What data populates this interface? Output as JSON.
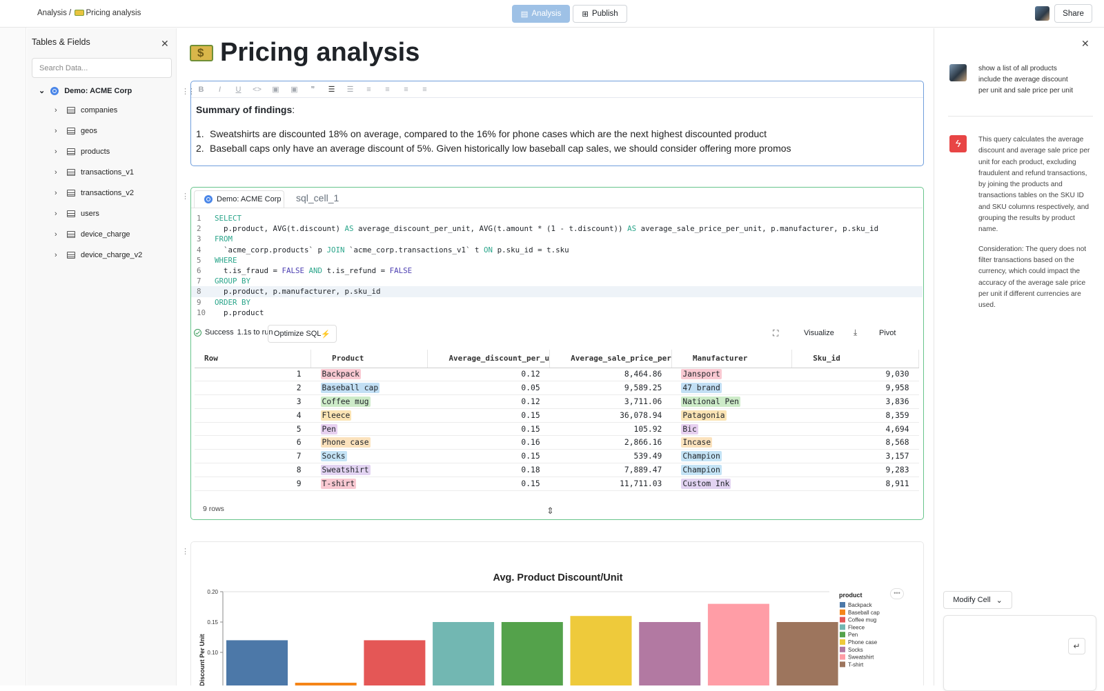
{
  "topbar": {
    "breadcrumb_root": "Analysis",
    "breadcrumb_sep": "/",
    "breadcrumb_page": "Pricing analysis",
    "analysis_label": "Analysis",
    "publish_label": "Publish",
    "share_label": "Share"
  },
  "left_panel": {
    "title": "Tables & Fields",
    "search_placeholder": "Search Data...",
    "datasource": "Demo: ACME Corp",
    "tables": [
      "companies",
      "geos",
      "products",
      "transactions_v1",
      "transactions_v2",
      "users",
      "device_charge",
      "device_charge_v2"
    ]
  },
  "page": {
    "title": "Pricing analysis"
  },
  "text_cell": {
    "heading": "Summary of findings",
    "heading_colon": ":",
    "items": [
      "Sweatshirts are discounted 18% on average, compared to the 16% for phone cases which are the next highest discounted product",
      "Baseball caps only have an average discount of 5%. Given historically low baseball cap sales, we should consider offering more promos"
    ]
  },
  "sql_cell": {
    "source": "Demo: ACME Corp",
    "name": "sql_cell_1",
    "code_lines": [
      [
        {
          "t": "SELECT",
          "c": "kw"
        }
      ],
      [
        {
          "t": "  p.product, AVG(t.discount) "
        },
        {
          "t": "AS",
          "c": "kw"
        },
        {
          "t": " average_discount_per_unit, AVG(t.amount * (1 - t.discount)) "
        },
        {
          "t": "AS",
          "c": "kw"
        },
        {
          "t": " average_sale_price_per_unit, p.manufacturer, p.sku_id"
        }
      ],
      [
        {
          "t": "FROM",
          "c": "kw"
        }
      ],
      [
        {
          "t": "  `acme_corp.products` p "
        },
        {
          "t": "JOIN",
          "c": "kw"
        },
        {
          "t": " `acme_corp.transactions_v1` t "
        },
        {
          "t": "ON",
          "c": "kw"
        },
        {
          "t": " p.sku_id = t.sku"
        }
      ],
      [
        {
          "t": "WHERE",
          "c": "kw"
        }
      ],
      [
        {
          "t": "  t.is_fraud = "
        },
        {
          "t": "FALSE",
          "c": "kw2"
        },
        {
          "t": " "
        },
        {
          "t": "AND",
          "c": "kw"
        },
        {
          "t": " t.is_refund = "
        },
        {
          "t": "FALSE",
          "c": "kw2"
        }
      ],
      [
        {
          "t": "GROUP BY",
          "c": "kw"
        }
      ],
      [
        {
          "t": "  p.product, p.manufacturer, p.sku_id"
        }
      ],
      [
        {
          "t": "ORDER BY",
          "c": "kw"
        }
      ],
      [
        {
          "t": "  p.product"
        }
      ]
    ],
    "active_line": 8,
    "status": "Success",
    "runtime": "1.1s to run",
    "optimize_label": "Optimize SQL",
    "visualize_label": "Visualize",
    "pivot_label": "Pivot",
    "columns": [
      "Row",
      "Product",
      "Average_discount_per_u",
      "Average_sale_price_per",
      "Manufacturer",
      "Sku_id"
    ],
    "rows": [
      {
        "row": "1",
        "product": "Backpack",
        "discount": "0.12",
        "price": "8,464.86",
        "manufacturer": "Jansport",
        "sku": "9,030"
      },
      {
        "row": "2",
        "product": "Baseball cap",
        "discount": "0.05",
        "price": "9,589.25",
        "manufacturer": "47 brand",
        "sku": "9,958"
      },
      {
        "row": "3",
        "product": "Coffee mug",
        "discount": "0.12",
        "price": "3,711.06",
        "manufacturer": "National Pen",
        "sku": "3,836"
      },
      {
        "row": "4",
        "product": "Fleece",
        "discount": "0.15",
        "price": "36,078.94",
        "manufacturer": "Patagonia",
        "sku": "8,359"
      },
      {
        "row": "5",
        "product": "Pen",
        "discount": "0.15",
        "price": "105.92",
        "manufacturer": "Bic",
        "sku": "4,694"
      },
      {
        "row": "6",
        "product": "Phone case",
        "discount": "0.16",
        "price": "2,866.16",
        "manufacturer": "Incase",
        "sku": "8,568"
      },
      {
        "row": "7",
        "product": "Socks",
        "discount": "0.15",
        "price": "539.49",
        "manufacturer": "Champion",
        "sku": "3,157"
      },
      {
        "row": "8",
        "product": "Sweatshirt",
        "discount": "0.18",
        "price": "7,889.47",
        "manufacturer": "Champion",
        "sku": "9,283"
      },
      {
        "row": "9",
        "product": "T-shirt",
        "discount": "0.15",
        "price": "11,711.03",
        "manufacturer": "Custom Ink",
        "sku": "8,911"
      }
    ],
    "product_colors": {
      "Backpack": "#f9c9d2",
      "Baseball cap": "#c2dff4",
      "Coffee mug": "#cdebc8",
      "Fleece": "#fbe4b4",
      "Pen": "#e7d0f0",
      "Phone case": "#fbe2bd",
      "Socks": "#c4e3f5",
      "Sweatshirt": "#e2d3f1",
      "T-shirt": "#f9c9d2"
    },
    "manufacturer_colors": {
      "Jansport": "#f9c9d2",
      "47 brand": "#c2dff4",
      "National Pen": "#cdebc8",
      "Patagonia": "#fbe4b4",
      "Bic": "#e7d0f0",
      "Incase": "#fbe2bd",
      "Champion": "#c4e3f5",
      "Custom Ink": "#e2d3f1"
    },
    "row_count": "9 rows"
  },
  "chart_data": {
    "type": "bar",
    "title": "Avg. Product Discount/Unit",
    "ylabel": "Average Discount Per Unit",
    "ylim": [
      0.0,
      0.2
    ],
    "yticks": [
      "0.20",
      "0.15",
      "0.10"
    ],
    "legend_title": "product",
    "legend_position": "right",
    "categories": [
      "Backpack",
      "Baseball cap",
      "Coffee mug",
      "Fleece",
      "Pen",
      "Phone case",
      "Socks",
      "Sweatshirt",
      "T-shirt"
    ],
    "values": [
      0.12,
      0.05,
      0.12,
      0.15,
      0.15,
      0.16,
      0.15,
      0.18,
      0.15
    ],
    "colors": [
      "#4c78a8",
      "#f58518",
      "#e45756",
      "#72b7b2",
      "#54a24b",
      "#eeca3b",
      "#b279a2",
      "#ff9da6",
      "#9d755d"
    ]
  },
  "assistant": {
    "user_message": "show a list of all products include the average discount per unit and sale price per unit",
    "ai_message_1": "This query calculates the average discount and average sale price per unit for each product, excluding fraudulent and refund transactions, by joining the products and transactions tables on the SKU ID and SKU columns respectively, and grouping the results by product name.",
    "ai_message_2": "Consideration: The query does not filter transactions based on the currency, which could impact the accuracy of the average sale price per unit if different currencies are used.",
    "modify_label": "Modify Cell"
  }
}
